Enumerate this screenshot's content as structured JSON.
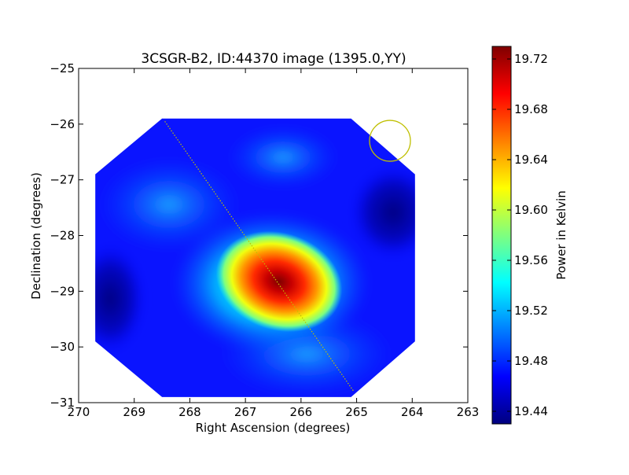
{
  "chart_data": {
    "type": "heatmap",
    "title": "3CSGR-B2, ID:44370 image (1395.0,YY)",
    "xlabel": "Right Ascension (degrees)",
    "ylabel": "Declination (degrees)",
    "xlim": [
      270,
      263
    ],
    "ylim": [
      -31,
      -25
    ],
    "x_ticks": [
      "270",
      "269",
      "268",
      "267",
      "266",
      "265",
      "264",
      "263"
    ],
    "x_tick_values": [
      270,
      269,
      268,
      267,
      266,
      265,
      264,
      263
    ],
    "y_ticks": [
      "−25",
      "−26",
      "−27",
      "−28",
      "−29",
      "−30",
      "−31"
    ],
    "y_tick_values": [
      -25,
      -26,
      -27,
      -28,
      -29,
      -30,
      -31
    ],
    "colorbar": {
      "label": "Power in Kelvin",
      "min": 19.43,
      "max": 19.73,
      "ticks": [
        "19.72",
        "19.68",
        "19.64",
        "19.60",
        "19.56",
        "19.52",
        "19.48",
        "19.44"
      ],
      "tick_values": [
        19.72,
        19.68,
        19.64,
        19.6,
        19.56,
        19.52,
        19.48,
        19.44
      ]
    },
    "colormap": [
      "#00007f",
      "#0000ff",
      "#007fff",
      "#00ffff",
      "#7fff7f",
      "#ffff00",
      "#ff7f00",
      "#ff0000",
      "#7f0000"
    ],
    "footprint_octagon_ra_dec": [
      [
        268.5,
        -25.9
      ],
      [
        265.1,
        -25.9
      ],
      [
        263.95,
        -26.9
      ],
      [
        263.95,
        -29.9
      ],
      [
        265.1,
        -30.9
      ],
      [
        268.5,
        -30.9
      ],
      [
        269.7,
        -29.9
      ],
      [
        269.7,
        -26.9
      ]
    ],
    "features": {
      "peak_source": {
        "ra": 266.4,
        "dec": -28.85,
        "value": 19.73
      },
      "beam_circle": {
        "ra": 264.4,
        "dec": -26.3,
        "color": "#bfbf00"
      },
      "dotted_track": {
        "from": [
          268.45,
          -25.95
        ],
        "to": [
          265.05,
          -30.8
        ],
        "color": "#bfbf00"
      }
    }
  }
}
